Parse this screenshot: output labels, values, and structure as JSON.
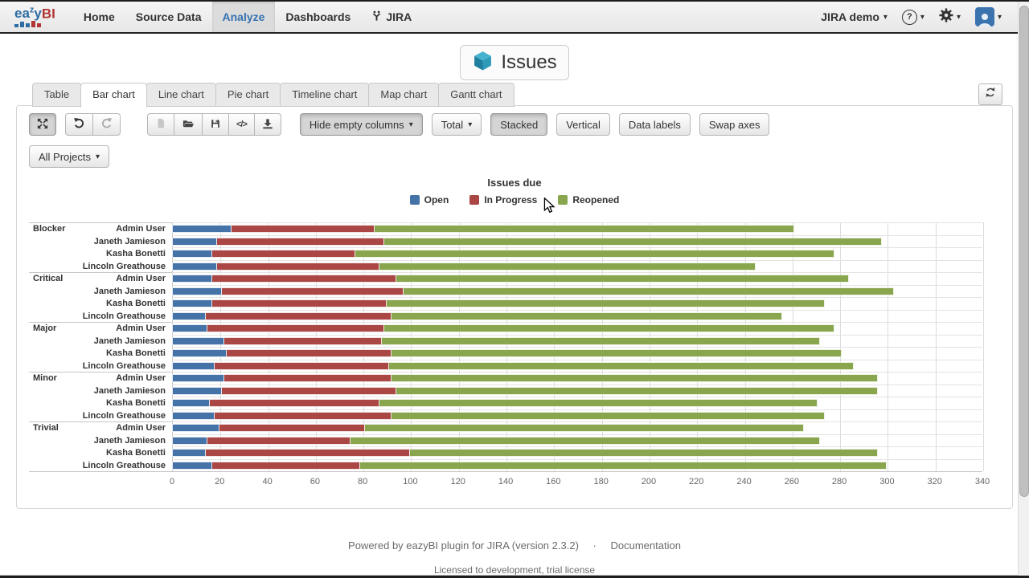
{
  "topbar": {
    "brand": {
      "text_blue_1": "ea",
      "text_blue_sup": "z",
      "text_blue_2": "y",
      "text_red": "BI"
    },
    "nav": [
      {
        "label": "Home",
        "active": false
      },
      {
        "label": "Source Data",
        "active": false
      },
      {
        "label": "Analyze",
        "active": true
      },
      {
        "label": "Dashboards",
        "active": false
      },
      {
        "label": "JIRA",
        "active": false,
        "icon": "jira-icon"
      }
    ],
    "account_label": "JIRA demo"
  },
  "glyphs": {
    "caret": "▾",
    "help": "?",
    "code": "</>"
  },
  "page": {
    "title": "Issues",
    "title_icon": "cube-icon"
  },
  "tabs": {
    "items": [
      "Table",
      "Bar chart",
      "Line chart",
      "Pie chart",
      "Timeline chart",
      "Map chart",
      "Gantt chart"
    ],
    "active_index": 1
  },
  "toolbar": {
    "hide_empty_columns": "Hide empty columns",
    "total": "Total",
    "stacked": "Stacked",
    "vertical": "Vertical",
    "data_labels": "Data labels",
    "swap_axes": "Swap axes"
  },
  "filter": {
    "all_projects": "All Projects"
  },
  "chart_data": {
    "type": "bar",
    "orientation": "horizontal",
    "stacked": true,
    "title": "Issues due",
    "legend_position": "top-center",
    "grid": true,
    "value_axis": {
      "min": 0,
      "max": 340,
      "step": 20
    },
    "series_names": [
      "Open",
      "In Progress",
      "Reopened"
    ],
    "series_colors": [
      "#4572A7",
      "#AA4643",
      "#89A54E"
    ],
    "groups": [
      {
        "category": "Blocker",
        "members": [
          {
            "name": "Admin User",
            "values": [
              25,
              60,
              176
            ]
          },
          {
            "name": "Janeth Jamieson",
            "values": [
              19,
              70,
              209
            ]
          },
          {
            "name": "Kasha Bonetti",
            "values": [
              17,
              60,
              201
            ]
          },
          {
            "name": "Lincoln Greathouse",
            "values": [
              19,
              68,
              158
            ]
          }
        ]
      },
      {
        "category": "Critical",
        "members": [
          {
            "name": "Admin User",
            "values": [
              17,
              77,
              190
            ]
          },
          {
            "name": "Janeth Jamieson",
            "values": [
              21,
              76,
              206
            ]
          },
          {
            "name": "Kasha Bonetti",
            "values": [
              17,
              73,
              184
            ]
          },
          {
            "name": "Lincoln Greathouse",
            "values": [
              14,
              78,
              164
            ]
          }
        ]
      },
      {
        "category": "Major",
        "members": [
          {
            "name": "Admin User",
            "values": [
              15,
              74,
              189
            ]
          },
          {
            "name": "Janeth Jamieson",
            "values": [
              22,
              66,
              184
            ]
          },
          {
            "name": "Kasha Bonetti",
            "values": [
              23,
              69,
              189
            ]
          },
          {
            "name": "Lincoln Greathouse",
            "values": [
              18,
              73,
              195
            ]
          }
        ]
      },
      {
        "category": "Minor",
        "members": [
          {
            "name": "Admin User",
            "values": [
              22,
              70,
              204
            ]
          },
          {
            "name": "Janeth Jamieson",
            "values": [
              21,
              73,
              202
            ]
          },
          {
            "name": "Kasha Bonetti",
            "values": [
              16,
              71,
              184
            ]
          },
          {
            "name": "Lincoln Greathouse",
            "values": [
              18,
              74,
              182
            ]
          }
        ]
      },
      {
        "category": "Trivial",
        "members": [
          {
            "name": "Admin User",
            "values": [
              20,
              61,
              184
            ]
          },
          {
            "name": "Janeth Jamieson",
            "values": [
              15,
              60,
              197
            ]
          },
          {
            "name": "Kasha Bonetti",
            "values": [
              14,
              86,
              196
            ]
          },
          {
            "name": "Lincoln Greathouse",
            "values": [
              17,
              62,
              221
            ]
          }
        ]
      }
    ]
  },
  "footer": {
    "powered_by": "Powered by eazyBI plugin for JIRA (version 2.3.2)",
    "separator": "·",
    "documentation": "Documentation",
    "license": "Licensed to development, trial license"
  }
}
